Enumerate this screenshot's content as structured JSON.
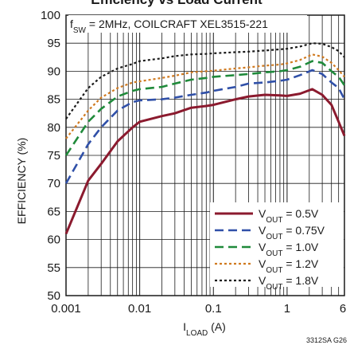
{
  "figure_id": "3312SA G26",
  "chart_data": {
    "type": "line",
    "title": "Efficiency vs Load Current",
    "annotation": {
      "text": "f",
      "sub": "SW",
      "rest": " = 2MHz, COILCRAFT XEL3515-221"
    },
    "xlabel": {
      "text": "I",
      "sub": "LOAD",
      "rest": " (A)"
    },
    "ylabel": "EFFICIENCY (%)",
    "x_scale": "log",
    "xlim": [
      0.001,
      6
    ],
    "ylim": [
      50,
      100
    ],
    "x_ticks": [
      0.001,
      0.01,
      0.1,
      1,
      6
    ],
    "x_tick_labels": [
      "0.001",
      "0.01",
      "0.1",
      "1",
      "6"
    ],
    "y_ticks": [
      50,
      55,
      60,
      65,
      70,
      75,
      80,
      85,
      90,
      95,
      100
    ],
    "y_tick_labels": [
      "50",
      "55",
      "60",
      "65",
      "70",
      "75",
      "80",
      "85",
      "90",
      "95",
      "100"
    ],
    "grid": true,
    "legend_position": "bottom-right",
    "series": [
      {
        "name": "V",
        "name_sub": "OUT",
        "name_rest": " = 0.5V",
        "color": "#8b1a2e",
        "style": "solid",
        "x": [
          0.001,
          0.002,
          0.003,
          0.005,
          0.008,
          0.01,
          0.02,
          0.03,
          0.05,
          0.08,
          0.1,
          0.2,
          0.3,
          0.5,
          0.8,
          1,
          1.5,
          2.2,
          3,
          4,
          5,
          6
        ],
        "y": [
          61,
          70.5,
          73.5,
          77.5,
          80,
          81,
          82,
          82.5,
          83.5,
          83.8,
          84,
          85,
          85.5,
          85.8,
          85.7,
          85.6,
          86,
          86.8,
          85.8,
          84,
          81,
          78.5
        ]
      },
      {
        "name": "V",
        "name_sub": "OUT",
        "name_rest": " = 0.75V",
        "color": "#3050a8",
        "style": "dash",
        "x": [
          0.001,
          0.002,
          0.003,
          0.005,
          0.008,
          0.01,
          0.02,
          0.03,
          0.05,
          0.08,
          0.1,
          0.2,
          0.3,
          0.5,
          0.8,
          1,
          1.5,
          2.2,
          3,
          4,
          5,
          6
        ],
        "y": [
          70,
          77,
          80,
          83,
          84.5,
          84.8,
          85,
          85.3,
          85.8,
          86.2,
          86.5,
          87.2,
          87.8,
          88,
          88.3,
          88.5,
          89.3,
          90.2,
          89.5,
          88,
          87,
          85
        ]
      },
      {
        "name": "V",
        "name_sub": "OUT",
        "name_rest": " = 1.0V",
        "color": "#1f8a3a",
        "style": "dash",
        "x": [
          0.001,
          0.002,
          0.003,
          0.005,
          0.008,
          0.01,
          0.02,
          0.03,
          0.05,
          0.08,
          0.1,
          0.2,
          0.3,
          0.5,
          0.8,
          1,
          1.5,
          2.2,
          3,
          4,
          5,
          6
        ],
        "y": [
          75,
          81,
          83.3,
          85.5,
          86.5,
          86.8,
          87.2,
          87.8,
          88.5,
          88.8,
          89,
          89.3,
          89.5,
          89.8,
          90,
          90.2,
          90.8,
          91.8,
          91.5,
          90,
          89,
          87.5
        ]
      },
      {
        "name": "V",
        "name_sub": "OUT",
        "name_rest": " = 1.2V",
        "color": "#d07a20",
        "style": "dot",
        "x": [
          0.001,
          0.002,
          0.003,
          0.005,
          0.008,
          0.01,
          0.02,
          0.03,
          0.05,
          0.08,
          0.1,
          0.2,
          0.3,
          0.5,
          0.8,
          1,
          1.5,
          2.2,
          3,
          4,
          5,
          6
        ],
        "y": [
          78,
          83,
          85.3,
          87,
          88,
          88.2,
          88.8,
          89.2,
          89.8,
          90,
          90.1,
          90.5,
          90.7,
          91,
          91.2,
          91.4,
          92,
          93,
          92.6,
          91.5,
          90.2,
          89
        ]
      },
      {
        "name": "V",
        "name_sub": "OUT",
        "name_rest": " = 1.8V",
        "color": "#1a1a1a",
        "style": "dot",
        "x": [
          0.001,
          0.002,
          0.003,
          0.005,
          0.008,
          0.01,
          0.02,
          0.03,
          0.05,
          0.08,
          0.1,
          0.2,
          0.3,
          0.5,
          0.8,
          1,
          1.5,
          2.2,
          3,
          4,
          5,
          6
        ],
        "y": [
          81.5,
          87,
          89,
          90.5,
          91.3,
          91.8,
          92.3,
          92.7,
          93,
          93.1,
          93.2,
          93.4,
          93.5,
          93.7,
          93.9,
          94,
          94.4,
          95,
          94.9,
          94.3,
          93.6,
          92.5
        ]
      }
    ]
  }
}
